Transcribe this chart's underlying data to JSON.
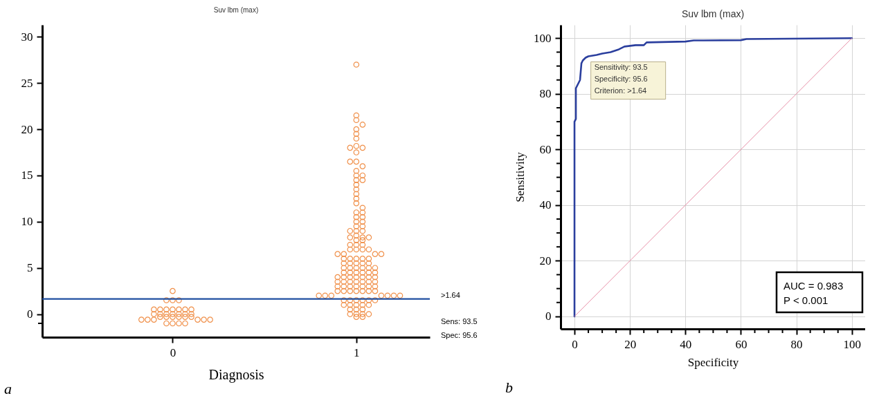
{
  "chart_data": [
    {
      "type": "scatter",
      "title": "Suv lbm (max)",
      "xlabel": "Diagnosis",
      "categories": [
        "0",
        "1"
      ],
      "marker": "circle",
      "ylim": [
        -2.5,
        31.3
      ],
      "yticks": [
        {
          "value": -1,
          "label": null
        },
        0,
        5,
        10,
        15,
        20,
        25,
        30
      ],
      "series": [
        {
          "color": "#f0904a",
          "x": [
            "0",
            "0",
            "0",
            "0",
            "0",
            "0",
            "0",
            "0",
            "0",
            "0",
            "0",
            "0",
            "0",
            "0",
            "0",
            "0",
            "0",
            "0",
            "0",
            "0",
            "0",
            "0",
            "0",
            "0",
            "0",
            "0",
            "0",
            "0",
            "0",
            "0",
            "0",
            "0",
            "0",
            "0"
          ],
          "values": [
            2.5,
            1.5,
            1.5,
            1.5,
            0.5,
            0.5,
            0.5,
            0.5,
            0.5,
            0.5,
            0.5,
            0,
            0,
            0,
            0,
            0,
            0,
            0,
            -0.3,
            -0.3,
            -0.3,
            -0.3,
            -0.3,
            -0.3,
            -0.6,
            -0.6,
            -0.6,
            -0.6,
            -0.6,
            -0.6,
            -1,
            -1,
            -1,
            -1
          ]
        },
        {
          "color": "#f0904a",
          "x": [
            "1",
            "1",
            "1",
            "1",
            "1",
            "1",
            "1",
            "1",
            "1",
            "1",
            "1",
            "1",
            "1",
            "1",
            "1",
            "1",
            "1",
            "1",
            "1",
            "1",
            "1",
            "1",
            "1",
            "1",
            "1",
            "1",
            "1",
            "1",
            "1",
            "1",
            "1",
            "1",
            "1",
            "1",
            "1",
            "1",
            "1",
            "1",
            "1",
            "1",
            "1",
            "1",
            "1",
            "1",
            "1",
            "1",
            "1",
            "1",
            "1",
            "1",
            "1",
            "1",
            "1",
            "1",
            "1",
            "1",
            "1",
            "1",
            "1",
            "1",
            "1",
            "1",
            "1",
            "1",
            "1",
            "1",
            "1",
            "1",
            "1",
            "1",
            "1",
            "1",
            "1",
            "1",
            "1",
            "1",
            "1",
            "1",
            "1",
            "1",
            "1",
            "1",
            "1",
            "1",
            "1",
            "1",
            "1",
            "1",
            "1",
            "1",
            "1",
            "1",
            "1",
            "1",
            "1",
            "1",
            "1",
            "1",
            "1",
            "1",
            "1",
            "1",
            "1",
            "1",
            "1",
            "1",
            "1",
            "1",
            "1",
            "1",
            "1",
            "1",
            "1",
            "1",
            "1",
            "1",
            "1",
            "1",
            "1",
            "1",
            "1",
            "1",
            "1",
            "1",
            "1",
            "1",
            "1",
            "1",
            "1",
            "1"
          ],
          "values": [
            27,
            21.5,
            21,
            20.5,
            20,
            19.5,
            19,
            18.2,
            18,
            18,
            17.5,
            16.5,
            16,
            16.5,
            15.5,
            15,
            15,
            14.5,
            14.5,
            14,
            13.5,
            13,
            12.5,
            12,
            11.5,
            11,
            11,
            10.5,
            10.5,
            10,
            10,
            9.5,
            9.5,
            9,
            9,
            9,
            8.5,
            8.3,
            8.3,
            8.3,
            8,
            8,
            7.5,
            7.5,
            7.5,
            7,
            7,
            7,
            7,
            6.5,
            6.5,
            6.5,
            6.5,
            6,
            6,
            6,
            6,
            6,
            5.5,
            5.5,
            5.5,
            5.5,
            5.5,
            5,
            5,
            5,
            5,
            5,
            5,
            4.5,
            4.5,
            4.5,
            4.5,
            4.5,
            4.5,
            4,
            4,
            4,
            4,
            4,
            4,
            4,
            3.5,
            3.5,
            3.5,
            3.5,
            3.5,
            3.5,
            3.5,
            3,
            3,
            3,
            3,
            3,
            3,
            3,
            2.5,
            2.5,
            2.5,
            2.5,
            2.5,
            2.5,
            2.5,
            2,
            2,
            2,
            2,
            2,
            2,
            2,
            1.5,
            1.5,
            1.5,
            1.5,
            1.5,
            1.5,
            1,
            1,
            1,
            1,
            1,
            0.5,
            0.5,
            0.5,
            0,
            0,
            0,
            0,
            -0.3,
            -0.3
          ]
        }
      ],
      "ref_lines": [
        {
          "axis": "y",
          "value": 1.64,
          "label": ">1.64",
          "color": "#1f4fa0"
        }
      ],
      "annotations": [
        "Sens: 93.5",
        "Spec: 95.6",
        "a"
      ]
    },
    {
      "type": "line",
      "title": "Suv lbm (max)",
      "xlabel": "Specificity",
      "ylabel": "Sensitivity",
      "xlim": [
        -5,
        104.8
      ],
      "ylim": [
        -4.5,
        104.8
      ],
      "xticks": [
        0,
        {
          "value": 5,
          "label": null
        },
        {
          "value": 10,
          "label": null
        },
        {
          "value": 15,
          "label": null
        },
        20,
        {
          "value": 25,
          "label": null
        },
        {
          "value": 30,
          "label": null
        },
        {
          "value": 35,
          "label": null
        },
        40,
        {
          "value": 45,
          "label": null
        },
        {
          "value": 50,
          "label": null
        },
        {
          "value": 55,
          "label": null
        },
        60,
        {
          "value": 65,
          "label": null
        },
        {
          "value": 70,
          "label": null
        },
        {
          "value": 75,
          "label": null
        },
        80,
        {
          "value": 85,
          "label": null
        },
        {
          "value": 90,
          "label": null
        },
        {
          "value": 95,
          "label": null
        },
        100
      ],
      "yticks": [
        0,
        {
          "value": 5,
          "label": null
        },
        {
          "value": 10,
          "label": null
        },
        {
          "value": 15,
          "label": null
        },
        20,
        {
          "value": 25,
          "label": null
        },
        {
          "value": 30,
          "label": null
        },
        {
          "value": 35,
          "label": null
        },
        40,
        {
          "value": 45,
          "label": null
        },
        {
          "value": 50,
          "label": null
        },
        {
          "value": 55,
          "label": null
        },
        60,
        {
          "value": 65,
          "label": null
        },
        {
          "value": 70,
          "label": null
        },
        {
          "value": 75,
          "label": null
        },
        80,
        {
          "value": 85,
          "label": null
        },
        {
          "value": 90,
          "label": null
        },
        {
          "value": 95,
          "label": null
        },
        100
      ],
      "grid": true,
      "line_style": "solid",
      "series": [
        {
          "color": "#2b3f9e",
          "x": [
            0,
            0,
            0.5,
            0.5,
            1,
            1.5,
            2,
            2.5,
            3,
            4,
            5,
            8,
            10,
            13,
            16,
            18,
            22,
            25,
            26,
            40,
            43,
            60,
            62,
            100
          ],
          "values": [
            0,
            70,
            71,
            82,
            83,
            84,
            85,
            91,
            92,
            93,
            93.5,
            94,
            94.5,
            95,
            96,
            97,
            97.5,
            97.5,
            98.5,
            98.8,
            99.2,
            99.3,
            99.7,
            100
          ]
        },
        {
          "color": "#e890a8",
          "x": [
            0,
            100
          ],
          "values": [
            0,
            100
          ]
        }
      ],
      "annotations": [
        {
          "text": "Sensitivity: 93.5\nSpecificity: 95.6\nCriterion: >1.64",
          "x": 4.4,
          "y": 93.5
        },
        "AUC = 0.983\nP < 0.001",
        "b"
      ]
    }
  ]
}
